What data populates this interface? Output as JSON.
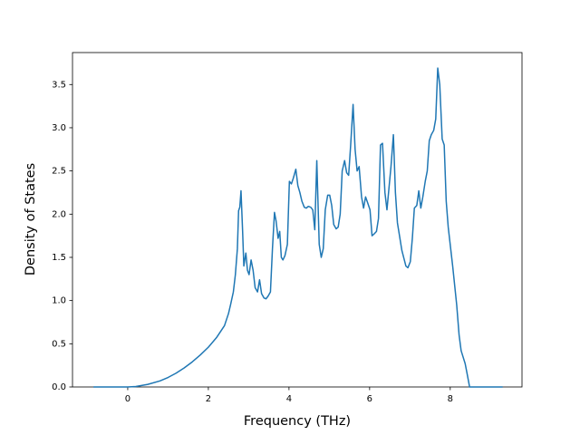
{
  "chart_data": {
    "type": "line",
    "xlabel": "Frequency (THz)",
    "ylabel": "Density of States",
    "color": "#1f77b4",
    "xlim": [
      -1.37,
      9.78
    ],
    "ylim": [
      0,
      3.87
    ],
    "xticks": [
      0,
      2,
      4,
      6,
      8
    ],
    "yticks": [
      {
        "value": 0,
        "label": "0.0"
      },
      0.5,
      {
        "value": 1,
        "label": "1.0"
      },
      1.5,
      {
        "value": 2,
        "label": "2.0"
      },
      2.5,
      {
        "value": 3,
        "label": "3.0"
      },
      3.5
    ],
    "x": [
      -0.85,
      0,
      0.2,
      0.5,
      0.8,
      1.0,
      1.2,
      1.4,
      1.6,
      1.8,
      2.0,
      2.2,
      2.4,
      2.5,
      2.55,
      2.62,
      2.67,
      2.72,
      2.75,
      2.78,
      2.81,
      2.85,
      2.88,
      2.93,
      2.97,
      3.01,
      3.06,
      3.11,
      3.16,
      3.22,
      3.27,
      3.32,
      3.38,
      3.43,
      3.48,
      3.54,
      3.59,
      3.64,
      3.68,
      3.73,
      3.77,
      3.81,
      3.85,
      3.9,
      3.96,
      4.01,
      4.06,
      4.11,
      4.17,
      4.22,
      4.27,
      4.32,
      4.38,
      4.43,
      4.48,
      4.54,
      4.59,
      4.64,
      4.69,
      4.75,
      4.8,
      4.85,
      4.9,
      4.96,
      5.01,
      5.06,
      5.11,
      5.17,
      5.22,
      5.27,
      5.32,
      5.38,
      5.43,
      5.48,
      5.53,
      5.59,
      5.64,
      5.69,
      5.74,
      5.8,
      5.85,
      5.9,
      5.96,
      6.01,
      6.06,
      6.11,
      6.17,
      6.22,
      6.27,
      6.32,
      6.38,
      6.43,
      6.48,
      6.53,
      6.59,
      6.64,
      6.69,
      6.8,
      6.9,
      6.95,
      7.01,
      7.06,
      7.11,
      7.17,
      7.22,
      7.27,
      7.32,
      7.38,
      7.43,
      7.48,
      7.53,
      7.59,
      7.64,
      7.69,
      7.74,
      7.8,
      7.85,
      7.9,
      7.95,
      8.06,
      8.16,
      8.22,
      8.27,
      8.37,
      8.42,
      8.48,
      9.3
    ],
    "values": [
      0,
      0,
      0.005,
      0.03,
      0.07,
      0.11,
      0.16,
      0.22,
      0.29,
      0.37,
      0.46,
      0.57,
      0.71,
      0.85,
      0.95,
      1.1,
      1.3,
      1.6,
      2.04,
      2.08,
      2.27,
      1.8,
      1.4,
      1.55,
      1.35,
      1.3,
      1.47,
      1.35,
      1.15,
      1.1,
      1.24,
      1.08,
      1.03,
      1.02,
      1.05,
      1.1,
      1.6,
      2.02,
      1.92,
      1.72,
      1.8,
      1.5,
      1.47,
      1.52,
      1.65,
      2.38,
      2.35,
      2.42,
      2.52,
      2.33,
      2.25,
      2.15,
      2.08,
      2.07,
      2.09,
      2.08,
      2.05,
      1.82,
      2.62,
      1.65,
      1.5,
      1.6,
      2.05,
      2.22,
      2.22,
      2.1,
      1.88,
      1.83,
      1.85,
      2.0,
      2.5,
      2.62,
      2.48,
      2.45,
      2.8,
      3.27,
      2.75,
      2.5,
      2.55,
      2.2,
      2.07,
      2.2,
      2.12,
      2.05,
      1.75,
      1.77,
      1.8,
      1.95,
      2.8,
      2.82,
      2.25,
      2.05,
      2.3,
      2.55,
      2.92,
      2.25,
      1.9,
      1.58,
      1.4,
      1.38,
      1.45,
      1.72,
      2.07,
      2.1,
      2.27,
      2.07,
      2.2,
      2.38,
      2.5,
      2.85,
      2.92,
      2.97,
      3.1,
      3.69,
      3.5,
      2.87,
      2.8,
      2.15,
      1.85,
      1.4,
      0.95,
      0.6,
      0.42,
      0.27,
      0.15,
      0,
      0
    ]
  }
}
